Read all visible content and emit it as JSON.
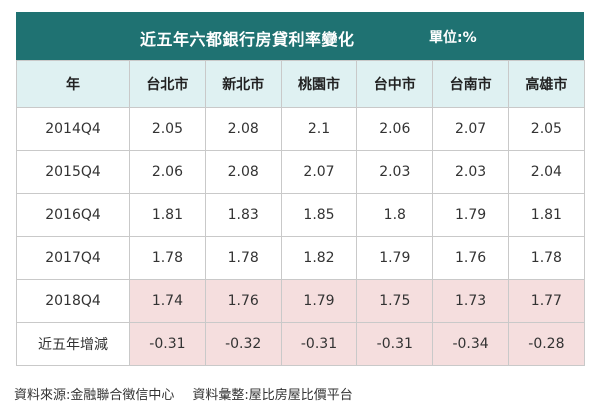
{
  "title": "近五年六都銀行房貸利率變化",
  "unit": "單位:%",
  "headers": [
    "年",
    "台北市",
    "新北市",
    "桃園市",
    "台中市",
    "台南市",
    "高雄市"
  ],
  "rows": [
    {
      "label": "2014Q4",
      "values": [
        "2.05",
        "2.08",
        "2.1",
        "2.06",
        "2.07",
        "2.05"
      ]
    },
    {
      "label": "2015Q4",
      "values": [
        "2.06",
        "2.08",
        "2.07",
        "2.03",
        "2.03",
        "2.04"
      ]
    },
    {
      "label": "2016Q4",
      "values": [
        "1.81",
        "1.83",
        "1.85",
        "1.8",
        "1.79",
        "1.81"
      ]
    },
    {
      "label": "2017Q4",
      "values": [
        "1.78",
        "1.78",
        "1.82",
        "1.79",
        "1.76",
        "1.78"
      ]
    },
    {
      "label": "2018Q4",
      "values": [
        "1.74",
        "1.76",
        "1.79",
        "1.75",
        "1.73",
        "1.77"
      ]
    },
    {
      "label": "近五年增減",
      "values": [
        "-0.31",
        "-0.32",
        "-0.31",
        "-0.31",
        "-0.34",
        "-0.28"
      ]
    }
  ],
  "footer": {
    "source": "資料來源:金融聯合徵信中心",
    "compiled": "資料彙整:屋比房屋比價平台"
  },
  "colors": {
    "header_bar": "#1f7272",
    "column_header_bg": "#dff1f2",
    "highlight_bg": "#f5dede"
  }
}
